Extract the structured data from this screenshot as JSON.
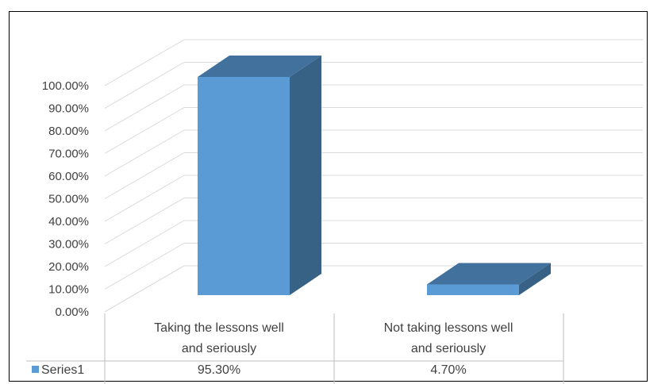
{
  "chart_data": {
    "type": "bar",
    "categories": [
      [
        "Taking the lessons well",
        "and seriously"
      ],
      [
        "Not taking lessons well",
        "and seriously"
      ]
    ],
    "series": [
      {
        "name": "Series1",
        "values": [
          95.3,
          4.7
        ]
      }
    ],
    "data_table": {
      "legend_label": "Series1",
      "cells": [
        "95.30%",
        "4.70%"
      ]
    },
    "yticks": [
      "0.00%",
      "10.00%",
      "20.00%",
      "30.00%",
      "40.00%",
      "50.00%",
      "60.00%",
      "70.00%",
      "80.00%",
      "90.00%",
      "100.00%"
    ],
    "ylim": [
      0,
      100
    ],
    "grid": true,
    "three_d": true,
    "colors": {
      "front": "#5B9BD5",
      "top": "#41719C",
      "side": "#386186",
      "grid": "#D9D9D9",
      "table_line": "#BFBFBF",
      "legend_key": "#5B9BD5"
    }
  }
}
